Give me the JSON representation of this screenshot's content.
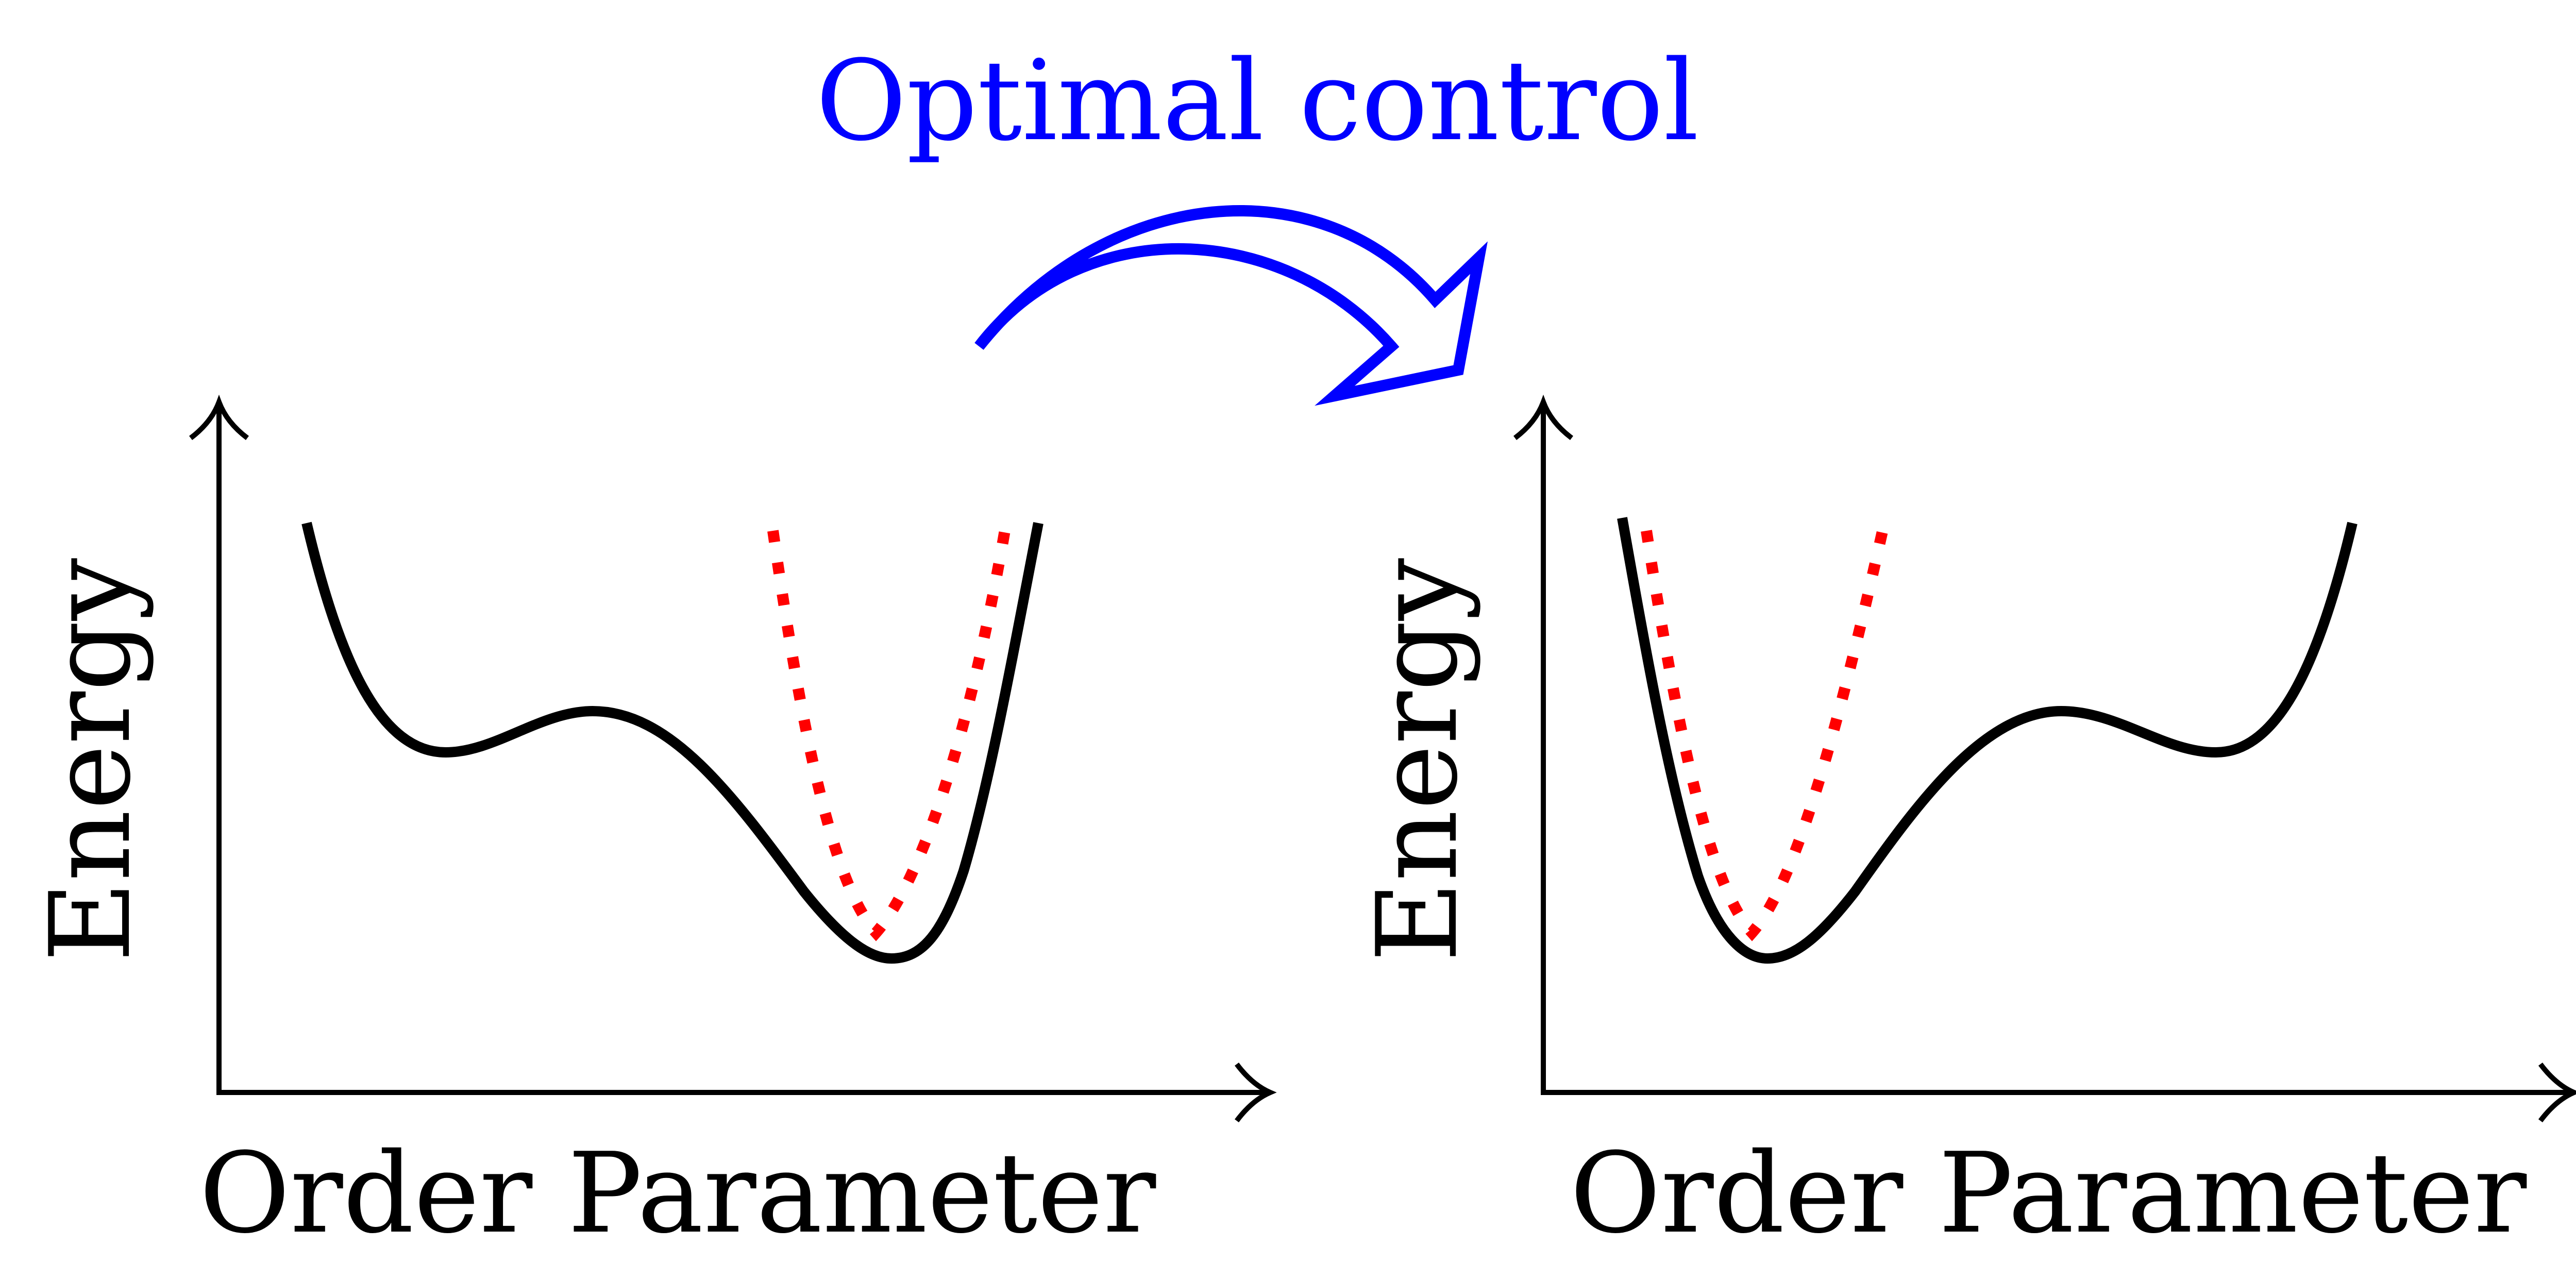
{
  "title": "Optimal control",
  "panels": [
    {
      "xlabel": "Order Parameter",
      "ylabel": "Energy"
    },
    {
      "xlabel": "Order Parameter",
      "ylabel": "Energy"
    }
  ],
  "colors": {
    "axis": "#000000",
    "potential": "#000000",
    "trap": "#ff0000",
    "arrow": "#0000ff",
    "title": "#0000ff"
  }
}
